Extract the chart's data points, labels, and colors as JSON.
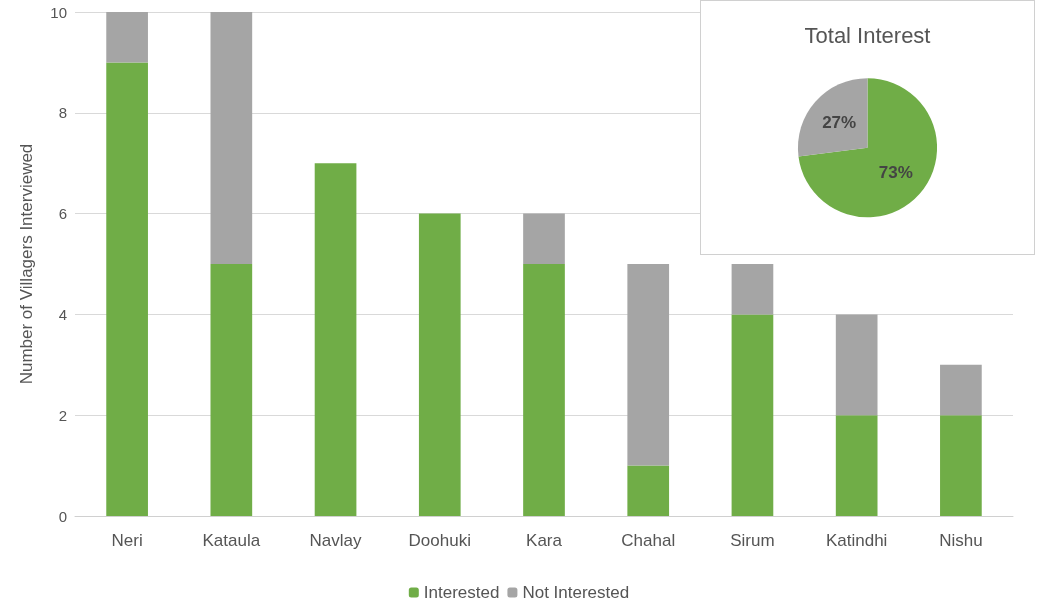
{
  "chart_data": [
    {
      "type": "bar",
      "stacked": true,
      "ylabel": "Number of Villagers Interviewed",
      "categories": [
        "Neri",
        "Kataula",
        "Navlay",
        "Doohuki",
        "Kara",
        "Chahal",
        "Sirum",
        "Katindhi",
        "Nishu"
      ],
      "series": [
        {
          "name": "Interested",
          "color": "#70ad47",
          "values": [
            9,
            5,
            7,
            6,
            5,
            1,
            4,
            2,
            2
          ]
        },
        {
          "name": "Not Interested",
          "color": "#a5a5a5",
          "values": [
            1,
            5,
            0,
            0,
            1,
            4,
            1,
            2,
            1
          ]
        }
      ],
      "ylim": [
        0,
        10
      ],
      "yticks": [
        0,
        2,
        4,
        6,
        8,
        10
      ],
      "grid": "y",
      "legend": "bottom"
    },
    {
      "type": "pie",
      "title": "Total Interest",
      "categories": [
        null,
        null
      ],
      "values": [
        73,
        27
      ],
      "colors": [
        "#70ad47",
        "#a5a5a5"
      ],
      "value_labels": [
        "73%",
        "27%"
      ]
    }
  ]
}
